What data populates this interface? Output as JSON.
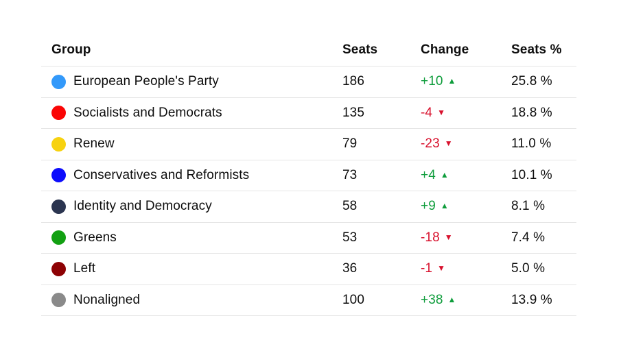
{
  "chart_data": {
    "type": "table",
    "columns": [
      "Group",
      "Seats",
      "Change",
      "Seats %"
    ],
    "rows": [
      {
        "group": "European People's Party",
        "seats": 186,
        "change": 10,
        "seats_pct": 25.8
      },
      {
        "group": "Socialists and Democrats",
        "seats": 135,
        "change": -4,
        "seats_pct": 18.8
      },
      {
        "group": "Renew",
        "seats": 79,
        "change": -23,
        "seats_pct": 11.0
      },
      {
        "group": "Conservatives and Reformists",
        "seats": 73,
        "change": 4,
        "seats_pct": 10.1
      },
      {
        "group": "Identity and Democracy",
        "seats": 58,
        "change": 9,
        "seats_pct": 8.1
      },
      {
        "group": "Greens",
        "seats": 53,
        "change": -18,
        "seats_pct": 7.4
      },
      {
        "group": "Left",
        "seats": 36,
        "change": -1,
        "seats_pct": 5.0
      },
      {
        "group": "Nonaligned",
        "seats": 100,
        "change": 38,
        "seats_pct": 13.9
      }
    ]
  },
  "table": {
    "columns": [
      {
        "label": "Group"
      },
      {
        "label": "Seats"
      },
      {
        "label": "Change"
      },
      {
        "label": "Seats %"
      }
    ],
    "rows": [
      {
        "group": "European People's Party",
        "dot_color": "#3399fa",
        "seats": "186",
        "change": "+10",
        "direction": "up",
        "seats_pct": "25.8 %"
      },
      {
        "group": "Socialists and Democrats",
        "dot_color": "#fa0505",
        "seats": "135",
        "change": "-4",
        "direction": "down",
        "seats_pct": "18.8 %"
      },
      {
        "group": "Renew",
        "dot_color": "#f7d210",
        "seats": "79",
        "change": "-23",
        "direction": "down",
        "seats_pct": "11.0 %"
      },
      {
        "group": "Conservatives and Reformists",
        "dot_color": "#0d0dfc",
        "seats": "73",
        "change": "+4",
        "direction": "up",
        "seats_pct": "10.1 %"
      },
      {
        "group": "Identity and Democracy",
        "dot_color": "#2b3550",
        "seats": "58",
        "change": "+9",
        "direction": "up",
        "seats_pct": "8.1 %"
      },
      {
        "group": "Greens",
        "dot_color": "#12a012",
        "seats": "53",
        "change": "-18",
        "direction": "down",
        "seats_pct": "7.4 %"
      },
      {
        "group": "Left",
        "dot_color": "#8d0204",
        "seats": "36",
        "change": "-1",
        "direction": "down",
        "seats_pct": "5.0 %"
      },
      {
        "group": "Nonaligned",
        "dot_color": "#8a8a8a",
        "seats": "100",
        "change": "+38",
        "direction": "up",
        "seats_pct": "13.9 %"
      }
    ]
  },
  "icons": {
    "up_triangle": "▲",
    "down_triangle": "▼"
  },
  "colors": {
    "positive": "#0f9d3c",
    "negative": "#d8112d",
    "text": "#0e0e0e",
    "divider": "#e4e4e4",
    "background": "#ffffff"
  }
}
